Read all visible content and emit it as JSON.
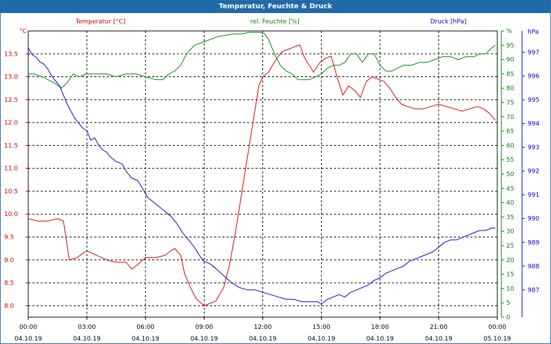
{
  "chart_data": {
    "type": "line",
    "title": "Temperatur, Feuchte & Druck",
    "x_ticks": [
      {
        "time": "00:00",
        "date": "04.10.19"
      },
      {
        "time": "03:00",
        "date": "04.10.19"
      },
      {
        "time": "06:00",
        "date": "04.10.19"
      },
      {
        "time": "09:00",
        "date": "04.10.19"
      },
      {
        "time": "12:00",
        "date": "04.10.19"
      },
      {
        "time": "15:00",
        "date": "04.10.19"
      },
      {
        "time": "18:00",
        "date": "04.10.19"
      },
      {
        "time": "21:00",
        "date": "04.10.19"
      },
      {
        "time": "00:00",
        "date": "05.10.19"
      }
    ],
    "xlim_hours": [
      0,
      24
    ],
    "grid": true,
    "axes": {
      "temperature": {
        "label": "Temperatur [°C]",
        "unit": "°C",
        "color": "#cc0000",
        "ylim": [
          7.75,
          14.0
        ],
        "ticks": [
          "8.0",
          "8.5",
          "9.0",
          "9.5",
          "10.0",
          "10.5",
          "11.0",
          "11.5",
          "12.0",
          "12.5",
          "13.0",
          "13.5"
        ],
        "tick_values": [
          8.0,
          8.5,
          9.0,
          9.5,
          10.0,
          10.5,
          11.0,
          11.5,
          12.0,
          12.5,
          13.0,
          13.5
        ]
      },
      "humidity": {
        "label": "rel. Feuchte [%]",
        "unit": "%",
        "color": "#008000",
        "ylim": [
          0,
          100
        ],
        "ticks": [
          "0",
          "5",
          "10",
          "15",
          "20",
          "25",
          "30",
          "35",
          "40",
          "45",
          "50",
          "55",
          "60",
          "65",
          "70",
          "75",
          "80",
          "85",
          "90",
          "95",
          "100"
        ],
        "tick_values": [
          0,
          5,
          10,
          15,
          20,
          25,
          30,
          35,
          40,
          45,
          50,
          55,
          60,
          65,
          70,
          75,
          80,
          85,
          90,
          95,
          100
        ]
      },
      "pressure": {
        "label": "Druck [hPa]",
        "unit": "hPa",
        "color": "#0000cc",
        "ylim": [
          985.85,
          997.9
        ],
        "ticks": [
          "987",
          "988",
          "989",
          "990",
          "991",
          "992",
          "993",
          "994",
          "995",
          "996",
          "997"
        ],
        "tick_values": [
          987,
          988,
          989,
          990,
          991,
          992,
          993,
          994,
          995,
          996,
          997
        ]
      }
    },
    "series": [
      {
        "name": "Temperatur [°C]",
        "axis": "temperature",
        "color": "#cc0000",
        "x": [
          0,
          0.5,
          1.0,
          1.5,
          1.8,
          2.1,
          2.5,
          2.8,
          3.0,
          3.5,
          4.0,
          4.5,
          5.0,
          5.3,
          5.6,
          6.0,
          6.5,
          7.0,
          7.3,
          7.5,
          7.8,
          8.0,
          8.3,
          8.6,
          9.0,
          9.3,
          9.6,
          10.0,
          10.3,
          10.6,
          10.9,
          11.2,
          11.5,
          11.8,
          12.0,
          12.3,
          12.5,
          12.8,
          13.0,
          13.3,
          13.6,
          13.9,
          14.1,
          14.3,
          14.6,
          14.9,
          15.2,
          15.5,
          15.8,
          16.1,
          16.4,
          16.7,
          17.0,
          17.3,
          17.6,
          17.9,
          18.2,
          18.5,
          18.8,
          19.1,
          19.4,
          19.8,
          20.2,
          20.6,
          21.0,
          21.4,
          21.8,
          22.2,
          22.6,
          23.0,
          23.3,
          23.6,
          23.9
        ],
        "values": [
          9.9,
          9.85,
          9.85,
          9.9,
          9.85,
          9.0,
          9.05,
          9.15,
          9.2,
          9.1,
          9.0,
          8.95,
          8.95,
          8.8,
          8.9,
          9.05,
          9.05,
          9.1,
          9.2,
          9.25,
          9.1,
          8.7,
          8.4,
          8.15,
          8.0,
          8.05,
          8.1,
          8.4,
          8.9,
          9.6,
          10.4,
          11.2,
          12.0,
          12.8,
          13.0,
          13.1,
          13.25,
          13.45,
          13.55,
          13.6,
          13.65,
          13.7,
          13.45,
          13.3,
          13.1,
          13.3,
          13.4,
          13.45,
          13.0,
          12.6,
          12.8,
          12.7,
          12.55,
          12.9,
          13.0,
          12.95,
          12.9,
          12.75,
          12.55,
          12.4,
          12.35,
          12.3,
          12.3,
          12.35,
          12.4,
          12.35,
          12.3,
          12.25,
          12.3,
          12.35,
          12.3,
          12.2,
          12.05
        ]
      },
      {
        "name": "rel. Feuchte [%]",
        "axis": "humidity",
        "color": "#008000",
        "x": [
          0,
          0.3,
          0.7,
          1.0,
          1.3,
          1.7,
          2.0,
          2.3,
          2.6,
          3.0,
          3.5,
          4.0,
          4.5,
          5.0,
          5.5,
          6.0,
          6.5,
          6.9,
          7.2,
          7.5,
          7.8,
          8.1,
          8.5,
          8.9,
          9.3,
          9.7,
          10.1,
          10.5,
          10.9,
          11.3,
          11.6,
          11.9,
          12.1,
          12.3,
          12.6,
          12.9,
          13.2,
          13.5,
          13.8,
          14.1,
          14.4,
          14.7,
          15.0,
          15.3,
          15.6,
          15.9,
          16.2,
          16.5,
          16.8,
          17.1,
          17.4,
          17.7,
          18.0,
          18.3,
          18.6,
          18.9,
          19.2,
          19.6,
          20.0,
          20.4,
          20.8,
          21.2,
          21.6,
          22.0,
          22.4,
          22.8,
          23.1,
          23.4,
          23.7,
          23.9
        ],
        "values": [
          85,
          85,
          84,
          83,
          82,
          80,
          82,
          85,
          84,
          85,
          85,
          85,
          84,
          85,
          85,
          84,
          83,
          83,
          85,
          86,
          88,
          92,
          95,
          96,
          97,
          98,
          98.5,
          99,
          99,
          99.5,
          99.5,
          99.5,
          99,
          97,
          92,
          88,
          86,
          85,
          83,
          83,
          83,
          84,
          85,
          87,
          88,
          88,
          89,
          92,
          92,
          89,
          92,
          92,
          88,
          86,
          86,
          87,
          88,
          88,
          89,
          89,
          90,
          91,
          91,
          90,
          91,
          91,
          92,
          92,
          94,
          95
        ]
      },
      {
        "name": "Druck [hPa]",
        "axis": "pressure",
        "color": "#0000cc",
        "x": [
          0,
          0.2,
          0.4,
          0.6,
          0.8,
          1.0,
          1.2,
          1.4,
          1.6,
          1.8,
          2.0,
          2.2,
          2.4,
          2.6,
          2.8,
          3.0,
          3.2,
          3.4,
          3.6,
          3.8,
          4.0,
          4.2,
          4.5,
          4.8,
          5.0,
          5.3,
          5.6,
          5.9,
          6.1,
          6.4,
          6.7,
          7.0,
          7.3,
          7.6,
          7.9,
          8.2,
          8.5,
          8.8,
          9.0,
          9.3,
          9.6,
          10.0,
          10.4,
          10.8,
          11.2,
          11.6,
          12.0,
          12.4,
          12.8,
          13.2,
          13.6,
          14.0,
          14.4,
          14.8,
          15.0,
          15.3,
          15.6,
          15.9,
          16.2,
          16.5,
          16.8,
          17.1,
          17.4,
          17.7,
          18.0,
          18.3,
          18.6,
          18.9,
          19.2,
          19.5,
          19.8,
          20.1,
          20.4,
          20.7,
          21.0,
          21.3,
          21.6,
          21.9,
          22.2,
          22.5,
          22.8,
          23.1,
          23.4,
          23.7,
          23.9
        ],
        "values": [
          997.2,
          996.9,
          996.8,
          996.6,
          996.5,
          996.3,
          996.0,
          995.8,
          995.6,
          995.2,
          994.8,
          994.5,
          994.2,
          994.0,
          993.8,
          993.7,
          993.3,
          993.4,
          993.1,
          992.9,
          992.8,
          992.6,
          992.4,
          992.3,
          992.0,
          991.7,
          991.6,
          991.2,
          990.9,
          990.7,
          990.5,
          990.3,
          990.1,
          989.8,
          989.4,
          989.1,
          988.8,
          988.4,
          988.2,
          988.1,
          987.9,
          987.6,
          987.3,
          987.1,
          987.0,
          987.0,
          986.9,
          986.8,
          986.7,
          986.6,
          986.6,
          986.5,
          986.5,
          986.5,
          986.4,
          986.6,
          986.7,
          986.8,
          986.7,
          986.9,
          987.0,
          987.1,
          987.2,
          987.4,
          987.5,
          987.7,
          987.8,
          987.9,
          988.0,
          988.2,
          988.3,
          988.4,
          988.5,
          988.6,
          988.8,
          989.0,
          989.1,
          989.1,
          989.2,
          989.3,
          989.4,
          989.5,
          989.5,
          989.6,
          989.6
        ]
      }
    ]
  }
}
